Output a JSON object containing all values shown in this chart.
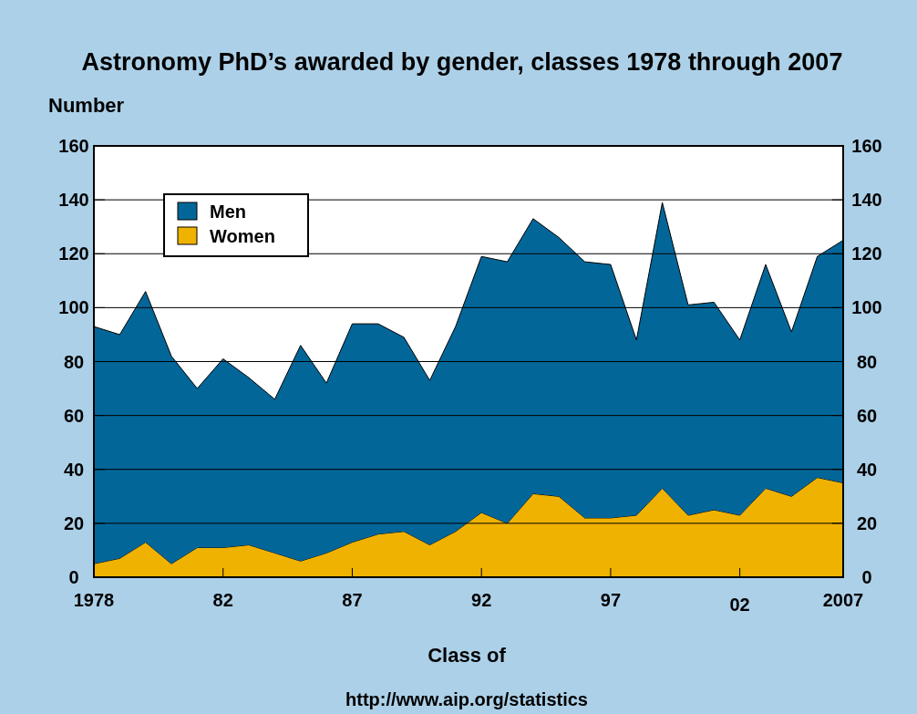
{
  "chart_data": {
    "type": "area",
    "title": "Astronomy PhD’s awarded by gender, classes 1978 through 2007",
    "ylabel": "Number",
    "xlabel": "Class of",
    "annotations": [
      "http://www.aip.org/statistics"
    ],
    "categories": [
      "1978",
      null,
      null,
      null,
      null,
      "82",
      null,
      null,
      null,
      null,
      "87",
      null,
      null,
      null,
      null,
      "92",
      null,
      null,
      null,
      null,
      "97",
      null,
      null,
      null,
      null,
      "02",
      null,
      null,
      null,
      "2007"
    ],
    "stacked": true,
    "series": [
      {
        "name": "Women",
        "color": "#efb200",
        "values": [
          5,
          7,
          13,
          5,
          11,
          11,
          12,
          9,
          6,
          9,
          13,
          16,
          17,
          12,
          17,
          24,
          20,
          31,
          30,
          22,
          22,
          23,
          33,
          23,
          25,
          23,
          33,
          30,
          37,
          35
        ]
      },
      {
        "name": "Men",
        "color": "#036699",
        "values": [
          88,
          83,
          93,
          77,
          59,
          70,
          62,
          57,
          80,
          63,
          81,
          78,
          72,
          61,
          76,
          95,
          97,
          102,
          96,
          95,
          94,
          65,
          106,
          78,
          77,
          65,
          83,
          61,
          82,
          90
        ]
      }
    ],
    "ylim": [
      0,
      160
    ],
    "yticks": [
      0,
      20,
      40,
      60,
      80,
      100,
      120,
      140,
      160
    ],
    "y2lim": [
      0,
      160
    ],
    "y2ticks": [
      0,
      20,
      40,
      60,
      80,
      100,
      120,
      140,
      160
    ],
    "grid": "y",
    "legend": "top left"
  }
}
